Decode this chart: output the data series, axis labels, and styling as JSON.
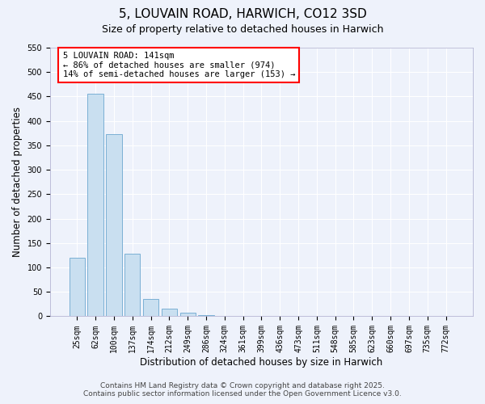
{
  "title": "5, LOUVAIN ROAD, HARWICH, CO12 3SD",
  "subtitle": "Size of property relative to detached houses in Harwich",
  "xlabel": "Distribution of detached houses by size in Harwich",
  "ylabel": "Number of detached properties",
  "bar_labels": [
    "25sqm",
    "62sqm",
    "100sqm",
    "137sqm",
    "174sqm",
    "212sqm",
    "249sqm",
    "286sqm",
    "324sqm",
    "361sqm",
    "399sqm",
    "436sqm",
    "473sqm",
    "511sqm",
    "548sqm",
    "585sqm",
    "623sqm",
    "660sqm",
    "697sqm",
    "735sqm",
    "772sqm"
  ],
  "bar_values": [
    120,
    455,
    373,
    128,
    35,
    15,
    8,
    3,
    1,
    0,
    0,
    0,
    0,
    0,
    0,
    0,
    0,
    0,
    0,
    0,
    1
  ],
  "bar_color": "#c9dff0",
  "bar_edge_color": "#7ab0d4",
  "ylim": [
    0,
    550
  ],
  "yticks": [
    0,
    50,
    100,
    150,
    200,
    250,
    300,
    350,
    400,
    450,
    500,
    550
  ],
  "annotation_line1": "5 LOUVAIN ROAD: 141sqm",
  "annotation_line2": "← 86% of detached houses are smaller (974)",
  "annotation_line3": "14% of semi-detached houses are larger (153) →",
  "footer_line1": "Contains HM Land Registry data © Crown copyright and database right 2025.",
  "footer_line2": "Contains public sector information licensed under the Open Government Licence v3.0.",
  "background_color": "#eef2fb",
  "grid_color": "#ffffff",
  "title_fontsize": 11,
  "subtitle_fontsize": 9,
  "axis_label_fontsize": 8.5,
  "tick_fontsize": 7,
  "annotation_fontsize": 7.5,
  "footer_fontsize": 6.5
}
